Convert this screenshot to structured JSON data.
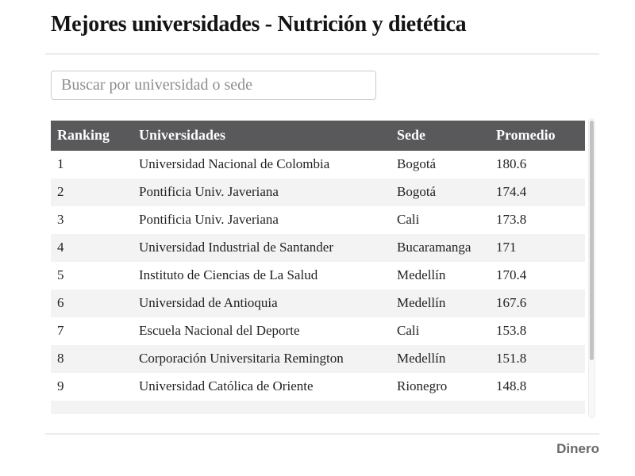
{
  "page": {
    "title": "Mejores universidades - Nutrición y dietética",
    "brand": "Dinero"
  },
  "search": {
    "placeholder": "Buscar por universidad o sede",
    "value": ""
  },
  "table": {
    "columns": [
      "Ranking",
      "Universidades",
      "Sede",
      "Promedio"
    ],
    "rows": [
      {
        "ranking": "1",
        "universidad": "Universidad Nacional de Colombia",
        "sede": "Bogotá",
        "promedio": "180.6"
      },
      {
        "ranking": "2",
        "universidad": "Pontificia Univ. Javeriana",
        "sede": "Bogotá",
        "promedio": "174.4"
      },
      {
        "ranking": "3",
        "universidad": "Pontificia Univ. Javeriana",
        "sede": "Cali",
        "promedio": "173.8"
      },
      {
        "ranking": "4",
        "universidad": "Universidad Industrial de Santander",
        "sede": "Bucaramanga",
        "promedio": "171"
      },
      {
        "ranking": "5",
        "universidad": "Instituto de Ciencias de La Salud",
        "sede": "Medellín",
        "promedio": "170.4"
      },
      {
        "ranking": "6",
        "universidad": "Universidad de Antioquia",
        "sede": "Medellín",
        "promedio": "167.6"
      },
      {
        "ranking": "7",
        "universidad": "Escuela Nacional del Deporte",
        "sede": "Cali",
        "promedio": "153.8"
      },
      {
        "ranking": "8",
        "universidad": "Corporación Universitaria Remington",
        "sede": "Medellín",
        "promedio": "151.8"
      },
      {
        "ranking": "9",
        "universidad": "Universidad Católica de Oriente",
        "sede": "Rionegro",
        "promedio": "148.8"
      }
    ],
    "partial_row_visible": true
  },
  "colors": {
    "header_bg": "#59595b",
    "header_text": "#fdfdfd",
    "stripe": "#f3f3f3",
    "title_text": "#141414",
    "brand_text": "#68696b",
    "scrollbar_thumb": "#c2c2c2"
  }
}
